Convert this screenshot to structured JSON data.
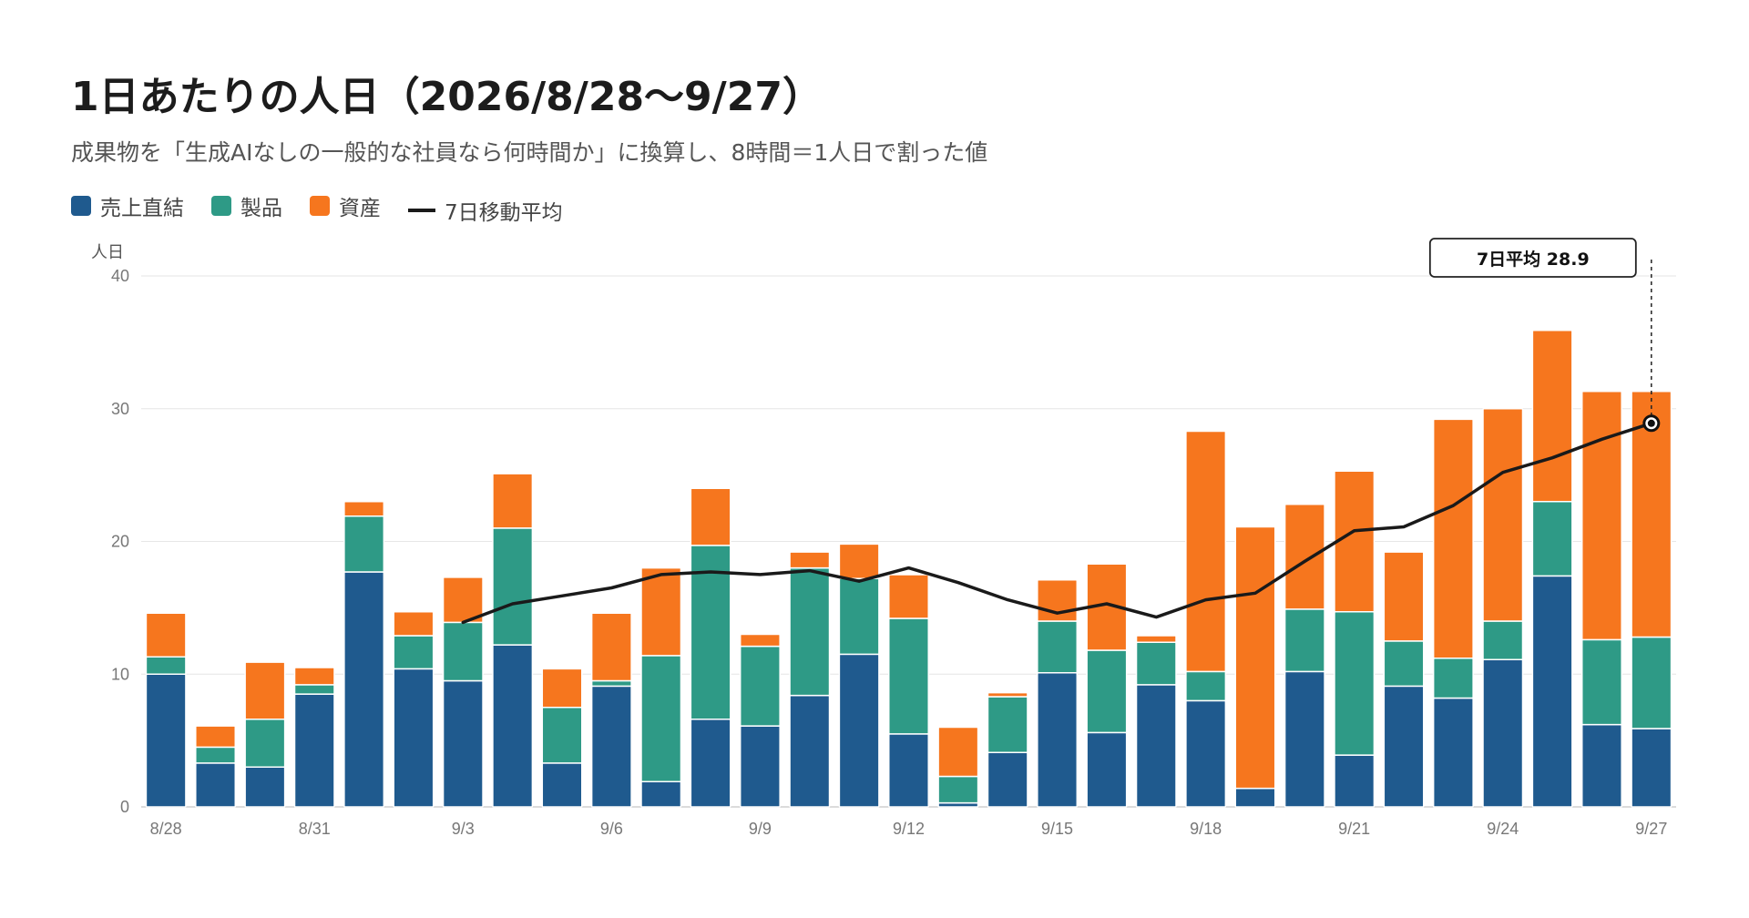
{
  "title": "1日あたりの人日（2026/8/28〜9/27）",
  "subtitle": "成果物を「生成AIなしの一般的な社員なら何時間か」に換算し、8時間＝1人日で割った値",
  "legend": {
    "sales": "売上直結",
    "product": "製品",
    "asset": "資産",
    "ma": "7日移動平均"
  },
  "colors": {
    "sales": "#1f5a8e",
    "product": "#2e9a86",
    "asset": "#f6761e",
    "ma": "#1a1a1a",
    "grid": "#e6e6e6"
  },
  "callout": {
    "label": "7日平均 28.9"
  },
  "chart_data": {
    "type": "bar",
    "stacked": true,
    "ylabel": "人日",
    "ylim": [
      0,
      40
    ],
    "yticks": [
      0,
      10,
      20,
      30,
      40
    ],
    "categories": [
      "8/28",
      "8/29",
      "8/30",
      "8/31",
      "9/1",
      "9/2",
      "9/3",
      "9/4",
      "9/5",
      "9/6",
      "9/7",
      "9/8",
      "9/9",
      "9/10",
      "9/11",
      "9/12",
      "9/13",
      "9/14",
      "9/15",
      "9/16",
      "9/17",
      "9/18",
      "9/19",
      "9/20",
      "9/21",
      "9/22",
      "9/23",
      "9/24",
      "9/25",
      "9/26",
      "9/27"
    ],
    "xtick_labels": [
      "8/28",
      "8/31",
      "9/3",
      "9/6",
      "9/9",
      "9/12",
      "9/15",
      "9/18",
      "9/21",
      "9/24",
      "9/27"
    ],
    "series": [
      {
        "name": "売上直結",
        "values": [
          10.0,
          3.3,
          3.0,
          8.5,
          17.7,
          10.4,
          9.5,
          12.2,
          3.3,
          9.1,
          1.9,
          6.6,
          6.1,
          8.4,
          11.5,
          5.5,
          0.3,
          4.1,
          10.1,
          5.6,
          9.2,
          8.0,
          1.4,
          10.2,
          3.9,
          9.1,
          8.2,
          11.1,
          17.4,
          6.2,
          5.9
        ]
      },
      {
        "name": "製品",
        "values": [
          1.3,
          1.2,
          3.6,
          0.7,
          4.2,
          2.5,
          4.4,
          8.8,
          4.2,
          0.4,
          9.5,
          13.1,
          6.0,
          9.6,
          5.7,
          8.7,
          2.0,
          4.2,
          3.9,
          6.2,
          3.2,
          2.2,
          0.0,
          4.7,
          10.8,
          3.4,
          3.0,
          2.9,
          5.6,
          6.4,
          6.9
        ]
      },
      {
        "name": "資産",
        "values": [
          3.3,
          1.6,
          4.3,
          1.3,
          1.1,
          1.8,
          3.4,
          4.1,
          2.9,
          5.1,
          6.6,
          4.3,
          0.9,
          1.2,
          2.6,
          3.3,
          3.7,
          0.3,
          3.1,
          6.5,
          0.5,
          18.1,
          19.7,
          7.9,
          10.6,
          6.7,
          18.0,
          16.0,
          12.9,
          18.7,
          18.5
        ]
      }
    ],
    "moving_average": {
      "name": "7日移動平均",
      "start_index": 6,
      "values": [
        13.9,
        15.3,
        15.9,
        16.5,
        17.5,
        17.7,
        17.5,
        17.8,
        17.0,
        18.0,
        16.9,
        15.6,
        14.6,
        15.3,
        14.3,
        15.6,
        16.1,
        18.5,
        20.8,
        21.1,
        22.7,
        25.2,
        26.3,
        27.7,
        28.9
      ]
    },
    "annotation": {
      "text": "7日平均 28.9",
      "index": 30,
      "value": 28.9
    }
  }
}
